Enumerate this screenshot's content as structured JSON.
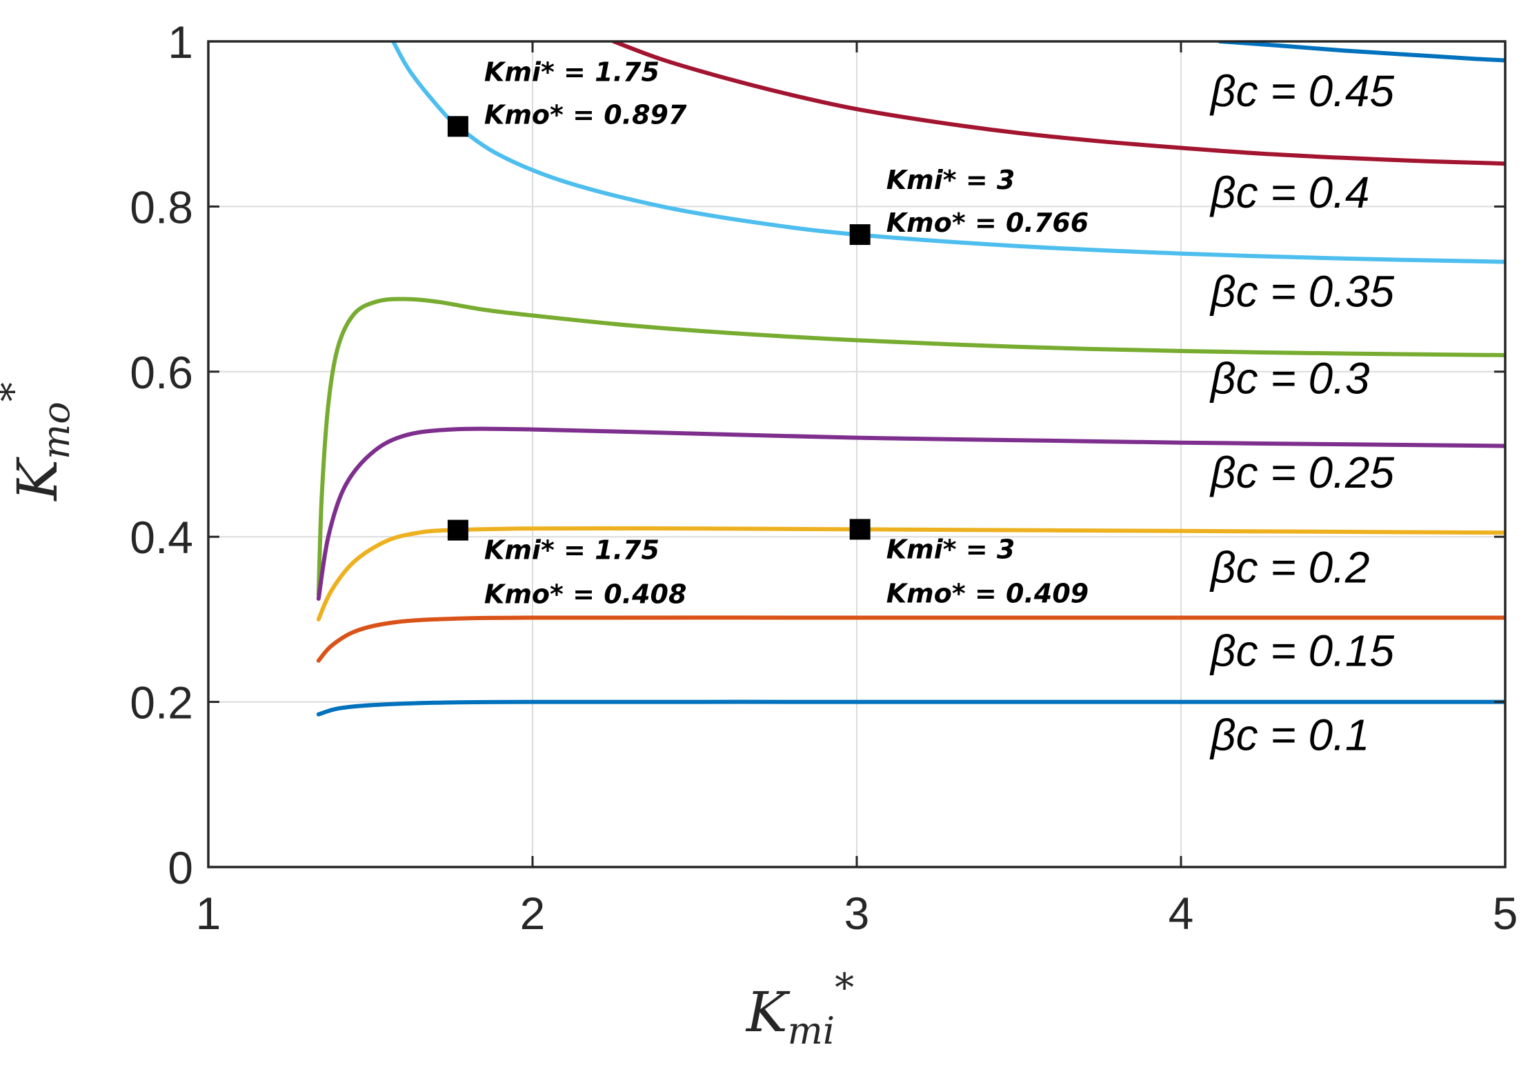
{
  "chart_data": {
    "type": "line",
    "xlabel": "K",
    "xlabel_sub": "mi",
    "xlabel_sup": "*",
    "ylabel": "K",
    "ylabel_sub": "mo",
    "ylabel_sup": "*",
    "xlim": [
      1,
      5
    ],
    "ylim": [
      0,
      1
    ],
    "xticks": [
      "1",
      "2",
      "3",
      "4",
      "5"
    ],
    "yticks": [
      "0",
      "0.2",
      "0.4",
      "0.6",
      "0.8",
      "1"
    ],
    "grid": true,
    "series": [
      {
        "name": "βc = 0.45",
        "color": "#0072bd",
        "points": [
          [
            4.12,
            1.0
          ],
          [
            4.3,
            0.995
          ],
          [
            4.5,
            0.989
          ],
          [
            4.7,
            0.984
          ],
          [
            4.9,
            0.979
          ],
          [
            5.0,
            0.977
          ]
        ]
      },
      {
        "name": "βc = 0.4",
        "color": "#a2142f",
        "points": [
          [
            2.25,
            1.0
          ],
          [
            2.4,
            0.978
          ],
          [
            2.6,
            0.955
          ],
          [
            2.8,
            0.935
          ],
          [
            3.0,
            0.918
          ],
          [
            3.25,
            0.902
          ],
          [
            3.5,
            0.889
          ],
          [
            3.75,
            0.879
          ],
          [
            4.0,
            0.871
          ],
          [
            4.25,
            0.864
          ],
          [
            4.5,
            0.859
          ],
          [
            4.75,
            0.855
          ],
          [
            5.0,
            0.852
          ]
        ]
      },
      {
        "name": "βc = 0.35",
        "color": "#4dbeee",
        "points": [
          [
            1.57,
            1.0
          ],
          [
            1.62,
            0.965
          ],
          [
            1.7,
            0.925
          ],
          [
            1.77,
            0.897
          ],
          [
            1.9,
            0.862
          ],
          [
            2.1,
            0.83
          ],
          [
            2.4,
            0.8
          ],
          [
            2.7,
            0.78
          ],
          [
            3.0,
            0.766
          ],
          [
            3.5,
            0.752
          ],
          [
            4.0,
            0.743
          ],
          [
            4.5,
            0.737
          ],
          [
            5.0,
            0.733
          ]
        ]
      },
      {
        "name": "βc = 0.3",
        "color": "#77ac30",
        "points": [
          [
            1.34,
            0.33
          ],
          [
            1.35,
            0.45
          ],
          [
            1.37,
            0.56
          ],
          [
            1.4,
            0.63
          ],
          [
            1.45,
            0.67
          ],
          [
            1.52,
            0.685
          ],
          [
            1.6,
            0.688
          ],
          [
            1.7,
            0.685
          ],
          [
            1.85,
            0.675
          ],
          [
            2.0,
            0.668
          ],
          [
            2.3,
            0.656
          ],
          [
            2.6,
            0.647
          ],
          [
            3.0,
            0.638
          ],
          [
            3.5,
            0.63
          ],
          [
            4.0,
            0.625
          ],
          [
            4.5,
            0.622
          ],
          [
            5.0,
            0.62
          ]
        ]
      },
      {
        "name": "βc = 0.25",
        "color": "#7e2f8e",
        "points": [
          [
            1.34,
            0.325
          ],
          [
            1.37,
            0.4
          ],
          [
            1.42,
            0.46
          ],
          [
            1.5,
            0.5
          ],
          [
            1.6,
            0.522
          ],
          [
            1.75,
            0.53
          ],
          [
            2.0,
            0.53
          ],
          [
            2.5,
            0.525
          ],
          [
            3.0,
            0.52
          ],
          [
            3.5,
            0.517
          ],
          [
            4.0,
            0.514
          ],
          [
            4.5,
            0.512
          ],
          [
            5.0,
            0.51
          ]
        ]
      },
      {
        "name": "βc = 0.2",
        "color": "#edb120",
        "points": [
          [
            1.34,
            0.3
          ],
          [
            1.38,
            0.335
          ],
          [
            1.45,
            0.37
          ],
          [
            1.55,
            0.395
          ],
          [
            1.65,
            0.405
          ],
          [
            1.75,
            0.408
          ],
          [
            2.0,
            0.41
          ],
          [
            2.5,
            0.41
          ],
          [
            3.0,
            0.409
          ],
          [
            3.5,
            0.408
          ],
          [
            4.0,
            0.407
          ],
          [
            4.5,
            0.406
          ],
          [
            5.0,
            0.405
          ]
        ]
      },
      {
        "name": "βc = 0.15",
        "color": "#d95319",
        "points": [
          [
            1.34,
            0.25
          ],
          [
            1.38,
            0.268
          ],
          [
            1.45,
            0.285
          ],
          [
            1.55,
            0.295
          ],
          [
            1.7,
            0.3
          ],
          [
            2.0,
            0.302
          ],
          [
            3.0,
            0.302
          ],
          [
            4.0,
            0.302
          ],
          [
            5.0,
            0.302
          ]
        ]
      },
      {
        "name": "βc = 0.1",
        "color": "#0072bd",
        "points": [
          [
            1.34,
            0.185
          ],
          [
            1.4,
            0.192
          ],
          [
            1.5,
            0.196
          ],
          [
            1.7,
            0.199
          ],
          [
            2.0,
            0.2
          ],
          [
            3.0,
            0.2
          ],
          [
            4.0,
            0.2
          ],
          [
            5.0,
            0.2
          ]
        ]
      }
    ],
    "series_labels": [
      {
        "text": "βc = 0.45",
        "y": 0.94
      },
      {
        "text": "βc = 0.4",
        "y": 0.817
      },
      {
        "text": "βc = 0.35",
        "y": 0.697
      },
      {
        "text": "βc = 0.3",
        "y": 0.592
      },
      {
        "text": "βc = 0.25",
        "y": 0.478
      },
      {
        "text": "βc = 0.2",
        "y": 0.363
      },
      {
        "text": "βc = 0.15",
        "y": 0.262
      },
      {
        "text": "βc = 0.1",
        "y": 0.16
      }
    ],
    "markers": [
      {
        "x": 1.77,
        "y": 0.897,
        "line1": "Kmi* = 1.75",
        "line2": "Kmo* = 0.897",
        "label_pos": "above"
      },
      {
        "x": 3.01,
        "y": 0.766,
        "line1": "Kmi* = 3",
        "line2": "Kmo* = 0.766",
        "label_pos": "above"
      },
      {
        "x": 1.77,
        "y": 0.408,
        "line1": "Kmi* = 1.75",
        "line2": "Kmo* = 0.408",
        "label_pos": "below"
      },
      {
        "x": 3.01,
        "y": 0.409,
        "line1": "Kmi* = 3",
        "line2": "Kmo* = 0.409",
        "label_pos": "below"
      }
    ]
  }
}
